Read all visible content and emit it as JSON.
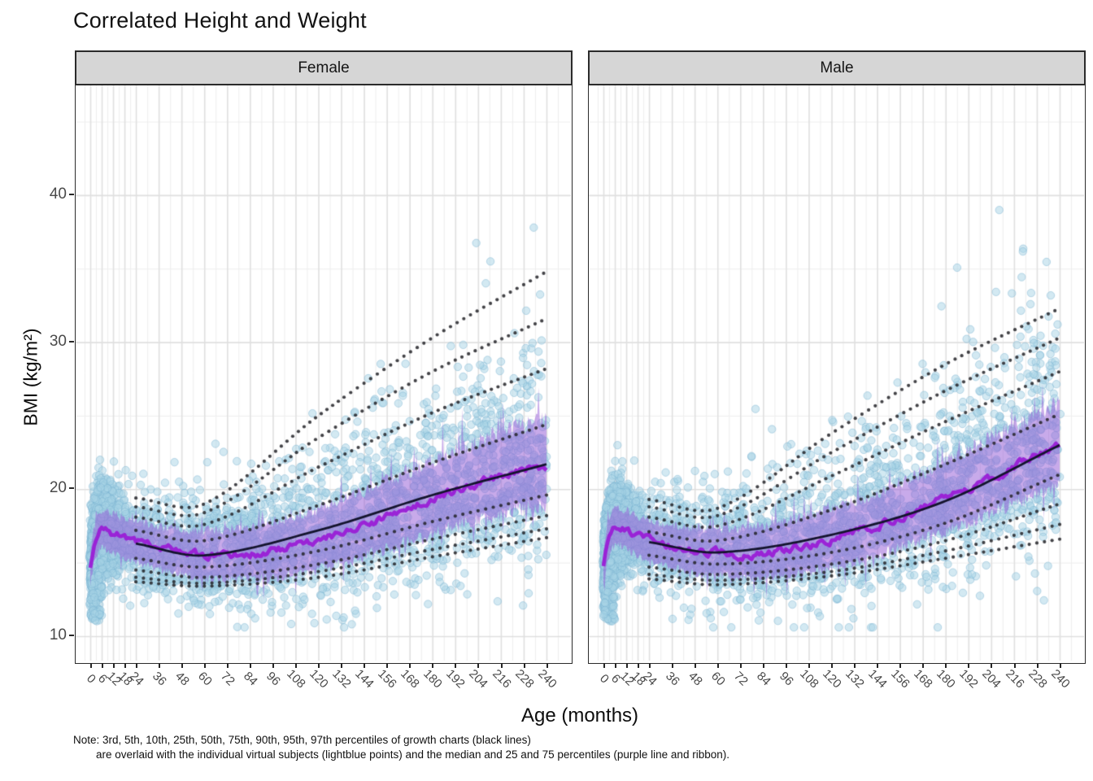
{
  "title": "Correlated Height and Weight",
  "facets": [
    {
      "label": "Female"
    },
    {
      "label": "Male"
    }
  ],
  "y_axis": {
    "label": "BMI (kg/m²)",
    "ticks": [
      40,
      30,
      20,
      10
    ]
  },
  "x_axis": {
    "label": "Age (months)",
    "ticks": [
      0,
      6,
      12,
      18,
      24,
      36,
      48,
      60,
      72,
      84,
      96,
      108,
      120,
      132,
      144,
      156,
      168,
      180,
      192,
      204,
      216,
      228,
      240
    ]
  },
  "note": {
    "line1": "Note: 3rd, 5th, 10th, 25th, 50th, 75th, 90th, 95th, 97th percentiles of growth charts (black lines)",
    "line2": "are overlaid with the individual virtual subjects (lightblue points) and the median and 25 and 75 percentiles (purple line and ribbon)."
  },
  "colors": {
    "scatter_fill": "rgba(168,212,230,0.50)",
    "scatter_stroke": "rgba(120,178,208,0.45)",
    "ribbon": "rgba(150,92,214,0.52)",
    "median_line": "rgba(154,30,214,0.95)",
    "percentile_dots": "rgba(35,35,40,0.85)",
    "smooth_line": "#14142e",
    "strip_bg": "#d6d6d6",
    "grid_major": "#e0e0e0",
    "grid_minor": "#eeeeee",
    "axis_text": "#4a4a4a",
    "panel_border": "#2b2b2b"
  },
  "chart_data": [
    {
      "type": "scatter",
      "facet": "Female",
      "xlabel": "Age (months)",
      "ylabel": "BMI (kg/m²)",
      "xlim": [
        -8,
        253
      ],
      "ylim": [
        8.3,
        47.5
      ],
      "grid": true,
      "percentile_labels": [
        "3rd",
        "5th",
        "10th",
        "25th",
        "50th",
        "75th",
        "90th",
        "95th",
        "97th"
      ],
      "growth_chart_percentiles": {
        "x": [
          24,
          60,
          120,
          180,
          240
        ],
        "p3": [
          13.7,
          13.4,
          14.0,
          15.4,
          16.7
        ],
        "p5": [
          14.0,
          13.6,
          14.4,
          15.9,
          17.3
        ],
        "p10": [
          14.5,
          14.0,
          14.9,
          16.6,
          18.2
        ],
        "p25": [
          15.3,
          14.7,
          15.8,
          17.8,
          19.6
        ],
        "p50": [
          16.3,
          15.5,
          17.2,
          19.6,
          21.7
        ],
        "p75": [
          17.2,
          16.5,
          18.9,
          21.8,
          24.4
        ],
        "p90": [
          18.1,
          17.6,
          21.5,
          25.2,
          28.2
        ],
        "p95": [
          18.8,
          18.4,
          23.5,
          28.0,
          31.6
        ],
        "p97": [
          19.4,
          19.0,
          25.0,
          30.3,
          34.8
        ]
      },
      "subject_median": {
        "x": [
          0,
          2,
          5,
          8,
          12,
          18,
          24,
          36,
          48,
          60,
          72,
          84,
          96,
          108,
          120,
          132,
          144,
          156,
          168,
          180,
          192,
          204,
          216,
          228,
          240
        ],
        "y": [
          14.6,
          16.2,
          17.1,
          17.2,
          17.0,
          16.6,
          16.4,
          16.0,
          15.7,
          15.5,
          15.5,
          15.6,
          15.8,
          16.1,
          16.5,
          17.0,
          17.5,
          18.1,
          18.7,
          19.3,
          19.9,
          20.4,
          20.9,
          21.3,
          21.6
        ]
      },
      "subject_iqr_halfwidth": {
        "upper_start": 1.15,
        "upper_end": 3.0,
        "lower_start": 1.15,
        "lower_end": 2.6
      },
      "scatter": {
        "n_points": 4200,
        "seed": 7,
        "bmi_max": 46.8
      }
    },
    {
      "type": "scatter",
      "facet": "Male",
      "xlabel": "Age (months)",
      "ylabel": "BMI (kg/m²)",
      "xlim": [
        -8,
        253
      ],
      "ylim": [
        8.3,
        47.5
      ],
      "grid": true,
      "percentile_labels": [
        "3rd",
        "5th",
        "10th",
        "25th",
        "50th",
        "75th",
        "90th",
        "95th",
        "97th"
      ],
      "growth_chart_percentiles": {
        "x": [
          24,
          60,
          120,
          180,
          240
        ],
        "p3": [
          13.9,
          13.5,
          14.1,
          15.3,
          16.6
        ],
        "p5": [
          14.2,
          13.8,
          14.4,
          15.8,
          17.6
        ],
        "p10": [
          14.7,
          14.2,
          14.9,
          16.5,
          19.0
        ],
        "p25": [
          15.5,
          14.9,
          15.7,
          17.7,
          21.0
        ],
        "p50": [
          16.4,
          15.7,
          16.9,
          19.2,
          23.0
        ],
        "p75": [
          17.1,
          16.5,
          18.6,
          21.7,
          25.1
        ],
        "p90": [
          18.1,
          17.5,
          20.9,
          24.6,
          28.0
        ],
        "p95": [
          18.8,
          18.2,
          22.5,
          26.7,
          30.3
        ],
        "p97": [
          19.3,
          18.7,
          23.8,
          28.5,
          32.3
        ]
      },
      "subject_median": {
        "x": [
          0,
          2,
          5,
          8,
          12,
          18,
          24,
          36,
          48,
          60,
          72,
          84,
          96,
          108,
          120,
          132,
          144,
          156,
          168,
          180,
          192,
          204,
          216,
          228,
          240
        ],
        "y": [
          14.6,
          16.3,
          17.4,
          17.5,
          17.2,
          16.8,
          16.5,
          16.1,
          15.8,
          15.7,
          15.6,
          15.7,
          15.9,
          16.2,
          16.6,
          17.0,
          17.5,
          18.1,
          18.7,
          19.4,
          20.1,
          20.8,
          21.5,
          22.2,
          22.9
        ]
      },
      "subject_iqr_halfwidth": {
        "upper_start": 1.15,
        "upper_end": 2.8,
        "lower_start": 1.15,
        "lower_end": 2.5
      },
      "scatter": {
        "n_points": 4200,
        "seed": 13,
        "bmi_max": 42.5
      }
    }
  ]
}
